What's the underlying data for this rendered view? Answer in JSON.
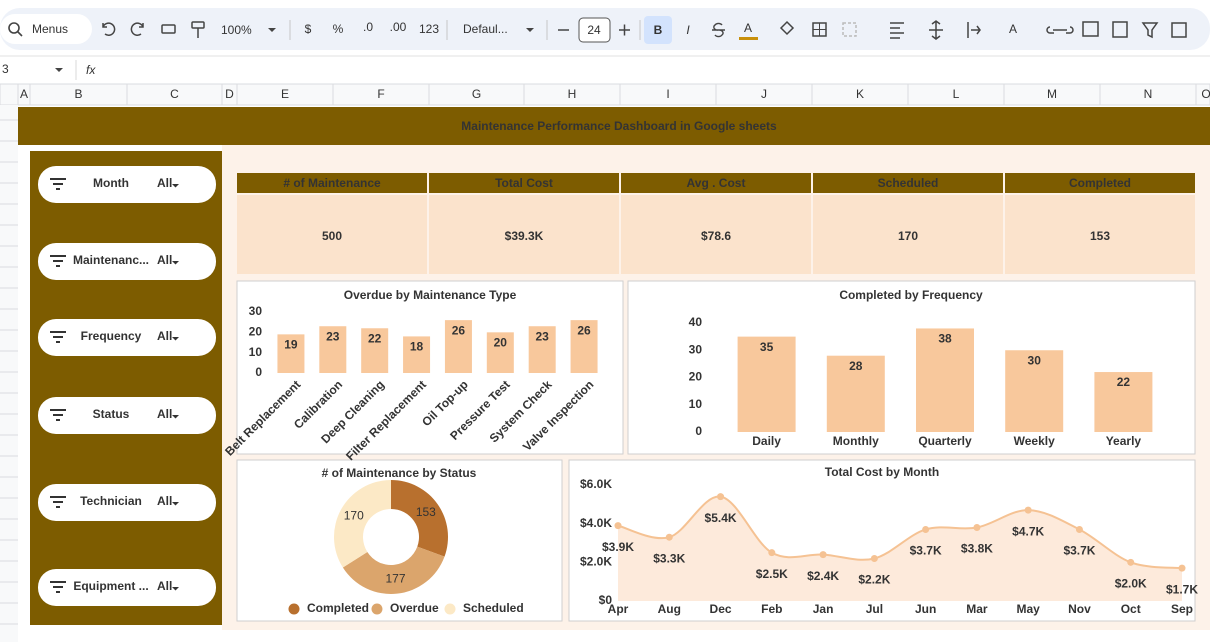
{
  "toolbar": {
    "search": "Menus",
    "zoom": "100%",
    "currency": "$",
    "percent": "%",
    "decrease_decimals": ".0",
    "increase_decimals": ".00",
    "number_format": "123",
    "font": "Defaul...",
    "font_size": "24",
    "bold": "B",
    "italic": "I",
    "text_color": "A",
    "text_rotation": "A"
  },
  "formula_bar": {
    "cell": "3",
    "fx": "fx"
  },
  "columns": [
    "A",
    "B",
    "C",
    "D",
    "E",
    "F",
    "G",
    "H",
    "I",
    "J",
    "K",
    "L",
    "M",
    "N",
    "O"
  ],
  "dashboard": {
    "title": "Maintenance Performance Dashboard in Google sheets",
    "filters": [
      {
        "label": "Month",
        "value": "All"
      },
      {
        "label": "Maintenanc...",
        "value": "All"
      },
      {
        "label": "Frequency",
        "value": "All"
      },
      {
        "label": "Status",
        "value": "All"
      },
      {
        "label": "Technician",
        "value": "All"
      },
      {
        "label": "Equipment ...",
        "value": "All"
      }
    ],
    "kpis": [
      {
        "label": "# of Maintenance",
        "value": "500"
      },
      {
        "label": "Total Cost",
        "value": "$39.3K"
      },
      {
        "label": "Avg . Cost",
        "value": "$78.6"
      },
      {
        "label": "Scheduled",
        "value": "170"
      },
      {
        "label": "Completed",
        "value": "153"
      }
    ]
  },
  "chart_data": [
    {
      "type": "bar",
      "title": "Overdue by Maintenance Type",
      "categories": [
        "Belt Replacement",
        "Calibration",
        "Deep Cleaning",
        "Filter Replacement",
        "Oil Top-up",
        "Pressure Test",
        "System Check",
        "Valve Inspection"
      ],
      "values": [
        19,
        23,
        22,
        18,
        26,
        20,
        23,
        26
      ],
      "color": "#f8c89c",
      "ylim": [
        0,
        30
      ],
      "yticks": [
        0,
        10,
        20,
        30
      ]
    },
    {
      "type": "bar",
      "title": "Completed by Frequency",
      "categories": [
        "Daily",
        "Monthly",
        "Quarterly",
        "Weekly",
        "Yearly"
      ],
      "values": [
        35,
        28,
        38,
        30,
        22
      ],
      "color": "#f8c89c",
      "ylim": [
        0,
        40
      ],
      "yticks": [
        0,
        10,
        20,
        30,
        40
      ]
    },
    {
      "type": "pie",
      "title": "# of Maintenance by Status",
      "categories": [
        "Completed",
        "Overdue",
        "Scheduled"
      ],
      "values": [
        153,
        177,
        170
      ],
      "colors": [
        "#b8702e",
        "#dba56c",
        "#fce9c6"
      ]
    },
    {
      "type": "line",
      "title": "Total Cost by Month",
      "categories": [
        "Apr",
        "Aug",
        "Dec",
        "Feb",
        "Jan",
        "Jul",
        "Jun",
        "Mar",
        "May",
        "Nov",
        "Oct",
        "Sep"
      ],
      "values": [
        3900,
        3300,
        5400,
        2500,
        2400,
        2200,
        3700,
        3800,
        4700,
        3700,
        2000,
        1700
      ],
      "value_labels": [
        "$3.9K",
        "$3.3K",
        "$5.4K",
        "$2.5K",
        "$2.4K",
        "$2.2K",
        "$3.7K",
        "$3.8K",
        "$4.7K",
        "$3.7K",
        "$2.0K",
        "$1.7K"
      ],
      "color": "#f5c293",
      "area_color": "#fdeadb",
      "ylim": [
        0,
        6000
      ],
      "yticks": [
        {
          "value": 0,
          "label": "$0"
        },
        {
          "value": 2000,
          "label": "$2.0K"
        },
        {
          "value": 4000,
          "label": "$4.0K"
        },
        {
          "value": 6000,
          "label": "$6.0K"
        }
      ]
    }
  ]
}
